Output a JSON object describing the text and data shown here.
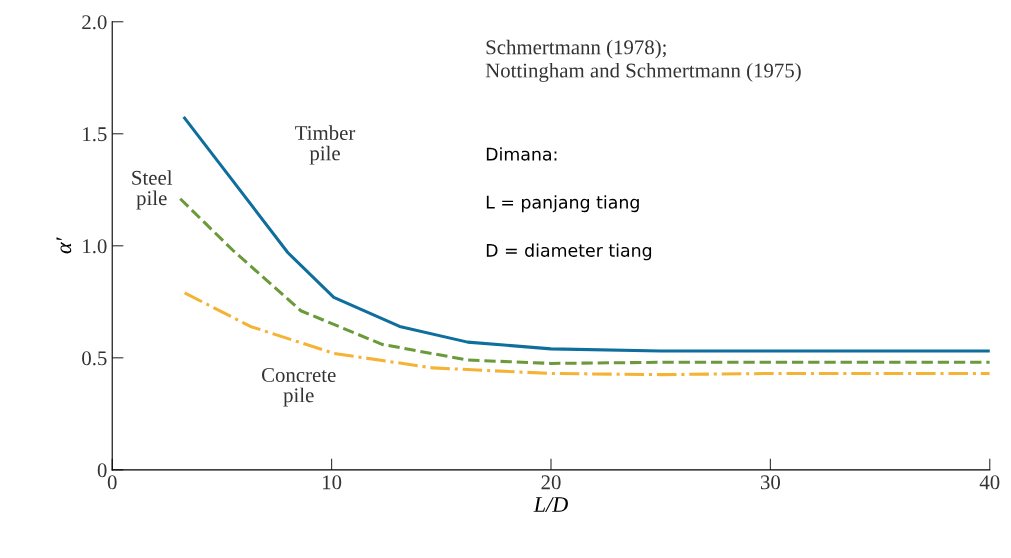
{
  "chart_data": {
    "type": "line",
    "xlabel": "L/D",
    "ylabel": "α′",
    "xlim": [
      0,
      40
    ],
    "ylim": [
      0,
      2.0
    ],
    "xticks": [
      0,
      10,
      20,
      30,
      40
    ],
    "yticks": [
      0,
      {
        "value": 0.5,
        "label": "0.5"
      },
      {
        "value": 1.0,
        "label": "1.0"
      },
      {
        "value": 1.5,
        "label": "1.5"
      },
      {
        "value": 2.0,
        "label": "2.0"
      }
    ],
    "grid": false,
    "legend": false,
    "series": [
      {
        "name": "Timber pile",
        "color": "#0e6f9c",
        "line_style": "solid",
        "x": [
          3.3,
          5.5,
          8.0,
          10.1,
          13.1,
          16.2,
          20,
          25,
          30,
          40
        ],
        "values": [
          1.57,
          1.29,
          0.97,
          0.77,
          0.64,
          0.57,
          0.54,
          0.53,
          0.53,
          0.53
        ]
      },
      {
        "name": "Steel pile",
        "color": "#6b9a3a",
        "line_style": "dashed",
        "x": [
          3.1,
          5.5,
          8.6,
          12.3,
          16.2,
          20,
          25,
          30,
          40
        ],
        "values": [
          1.21,
          0.98,
          0.71,
          0.56,
          0.49,
          0.475,
          0.48,
          0.48,
          0.48
        ]
      },
      {
        "name": "Concrete pile",
        "color": "#f5b335",
        "line_style": "dashdot",
        "x": [
          3.3,
          6.3,
          10.1,
          14.6,
          20,
          25,
          30,
          40
        ],
        "values": [
          0.79,
          0.64,
          0.52,
          0.455,
          0.43,
          0.425,
          0.43,
          0.43
        ]
      }
    ],
    "annotations": [
      "Schmertmann (1978);\nNottingham and Schmertmann (1975)",
      "Dimana:\n\nL = panjang tiang\n\nD = diameter tiang"
    ]
  }
}
